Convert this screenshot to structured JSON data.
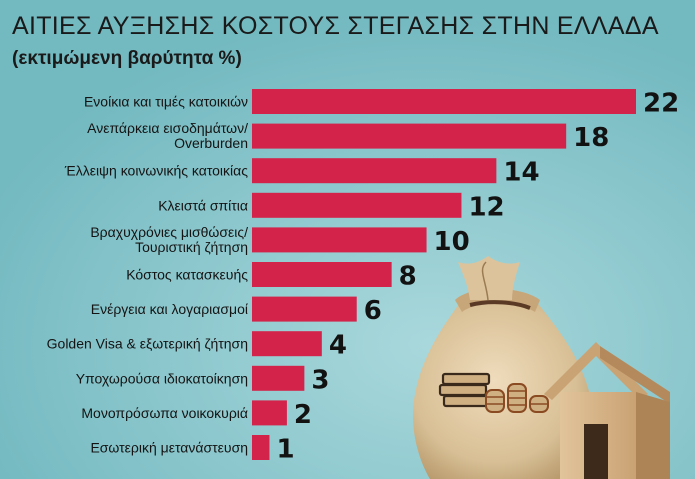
{
  "page": {
    "title": "ΑΙΤΙΕΣ ΑΥΞΗΣΗΣ ΚΟΣΤΟΥΣ ΣΤΕΓΑΣΗΣ ΣΤΗΝ ΕΛΛΑΔΑ",
    "subtitle": "(εκτιμώμενη βαρύτητα %)"
  },
  "colors": {
    "background": "#7fc1c7",
    "bar": "#d3234a",
    "text": "#141414"
  },
  "chart_data": {
    "type": "bar",
    "orientation": "horizontal",
    "title": "ΑΙΤΙΕΣ ΑΥΞΗΣΗΣ ΚΟΣΤΟΥΣ ΣΤΕΓΑΣΗΣ ΣΤΗΝ ΕΛΛΑΔΑ",
    "subtitle": "(εκτιμώμενη βαρύτητα %)",
    "xlabel": "",
    "ylabel": "",
    "xlim": [
      0,
      22
    ],
    "grid": false,
    "legend": "none",
    "categories": [
      [
        "Ενοίκια και τιμές κατοικιών"
      ],
      [
        "Ανεπάρκεια εισοδημάτων/",
        "Overburden"
      ],
      [
        "Έλλειψη κοινωνικής κατοικίας"
      ],
      [
        "Κλειστά σπίτια"
      ],
      [
        "Βραχυχρόνιες μισθώσεις/",
        "Τουριστική ζήτηση"
      ],
      [
        "Κόστος κατασκευής"
      ],
      [
        "Ενέργεια και λογαριασμοί"
      ],
      [
        "Golden Visa & εξωτερική ζήτηση"
      ],
      [
        "Υποχωρούσα ιδιοκατοίκηση"
      ],
      [
        "Μονοπρόσωπα νοικοκυριά"
      ],
      [
        "Εσωτερική μετανάστευση"
      ]
    ],
    "values": [
      22,
      18,
      14,
      12,
      10,
      8,
      6,
      4,
      3,
      2,
      1
    ]
  }
}
